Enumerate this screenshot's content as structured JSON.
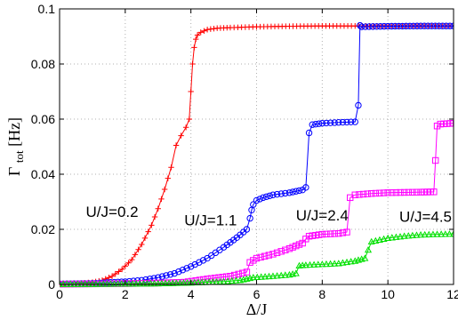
{
  "chart_data": {
    "type": "line",
    "title": "",
    "xlabel": "Δ/J",
    "ylabel": "Γ",
    "ylabel_sub": "tot",
    "ylabel_unit": " [Hz]",
    "xlim": [
      0,
      12
    ],
    "ylim": [
      0,
      0.1
    ],
    "xticks": [
      0,
      2,
      4,
      6,
      8,
      10,
      12
    ],
    "yticks": [
      0,
      0.02,
      0.04,
      0.06,
      0.08,
      0.1
    ],
    "xtick_labels": [
      "0",
      "2",
      "4",
      "6",
      "8",
      "10",
      "12"
    ],
    "ytick_labels": [
      "0",
      "0.02",
      "0.04",
      "0.06",
      "0.08",
      "0.1"
    ],
    "grid": true,
    "series": [
      {
        "label": "U/J=0.2",
        "color": "#ff0000",
        "marker": "plus",
        "x": [
          0,
          0.5,
          1.0,
          1.3,
          1.6,
          1.9,
          2.2,
          2.5,
          2.8,
          3.0,
          3.2,
          3.4,
          3.55,
          3.7,
          3.85,
          3.95,
          4.0,
          4.05,
          4.1,
          4.15,
          4.2,
          4.3,
          4.5,
          4.8,
          5.2,
          6,
          7,
          8,
          9,
          10,
          11,
          12
        ],
        "y": [
          0.0002,
          0.0003,
          0.0008,
          0.0015,
          0.003,
          0.0055,
          0.009,
          0.0145,
          0.0215,
          0.0275,
          0.0345,
          0.0425,
          0.0505,
          0.054,
          0.057,
          0.06,
          0.07,
          0.08,
          0.086,
          0.089,
          0.0905,
          0.0915,
          0.0925,
          0.093,
          0.0932,
          0.0935,
          0.0937,
          0.0938,
          0.0938,
          0.0938,
          0.0938,
          0.0938
        ]
      },
      {
        "label": "U/J=1.1",
        "color": "#0000ff",
        "marker": "circle",
        "x": [
          0,
          1,
          2,
          2.5,
          3,
          3.5,
          4,
          4.5,
          5,
          5.4,
          5.6,
          5.7,
          5.8,
          5.85,
          5.9,
          6.0,
          6.2,
          6.5,
          7.0,
          7.4,
          7.5,
          7.6,
          7.7,
          8.0,
          8.5,
          9.0,
          9.1,
          9.15,
          9.2,
          10,
          11,
          12
        ],
        "y": [
          0.0002,
          0.0004,
          0.001,
          0.0015,
          0.0025,
          0.004,
          0.0065,
          0.0095,
          0.0135,
          0.017,
          0.019,
          0.02,
          0.024,
          0.027,
          0.029,
          0.0305,
          0.0315,
          0.0325,
          0.0333,
          0.0343,
          0.0352,
          0.055,
          0.058,
          0.0585,
          0.0588,
          0.059,
          0.065,
          0.094,
          0.0935,
          0.0937,
          0.0938,
          0.0938
        ]
      },
      {
        "label": "U/J=2.4",
        "color": "#ff00ff",
        "marker": "square",
        "x": [
          0,
          1,
          2,
          3,
          3.8,
          4.5,
          5.2,
          5.7,
          5.8,
          6.0,
          6.5,
          7.0,
          7.4,
          7.5,
          7.6,
          8.0,
          8.5,
          8.75,
          8.85,
          9.0,
          9.5,
          10,
          10.5,
          11,
          11.4,
          11.45,
          11.5,
          11.6,
          12
        ],
        "y": [
          0.0001,
          0.0002,
          0.0003,
          0.0005,
          0.0008,
          0.002,
          0.003,
          0.0045,
          0.008,
          0.0095,
          0.011,
          0.013,
          0.015,
          0.0165,
          0.0175,
          0.0182,
          0.0185,
          0.019,
          0.0315,
          0.0325,
          0.033,
          0.0333,
          0.0334,
          0.0335,
          0.0336,
          0.045,
          0.0575,
          0.0582,
          0.0585
        ]
      },
      {
        "label": "U/J=4.5",
        "color": "#00e000",
        "marker": "triangle",
        "x": [
          0,
          1,
          2,
          3,
          4,
          5,
          5.5,
          5.7,
          5.9,
          6.5,
          7.0,
          7.2,
          7.3,
          7.5,
          8.0,
          8.5,
          9.0,
          9.3,
          9.5,
          10,
          10.5,
          11,
          11.5,
          12
        ],
        "y": [
          0.0001,
          0.0001,
          0.0002,
          0.0003,
          0.0006,
          0.001,
          0.0015,
          0.002,
          0.0025,
          0.003,
          0.0035,
          0.004,
          0.0068,
          0.007,
          0.0073,
          0.0076,
          0.0085,
          0.0095,
          0.0155,
          0.0168,
          0.0175,
          0.018,
          0.0182,
          0.0183
        ]
      }
    ]
  }
}
